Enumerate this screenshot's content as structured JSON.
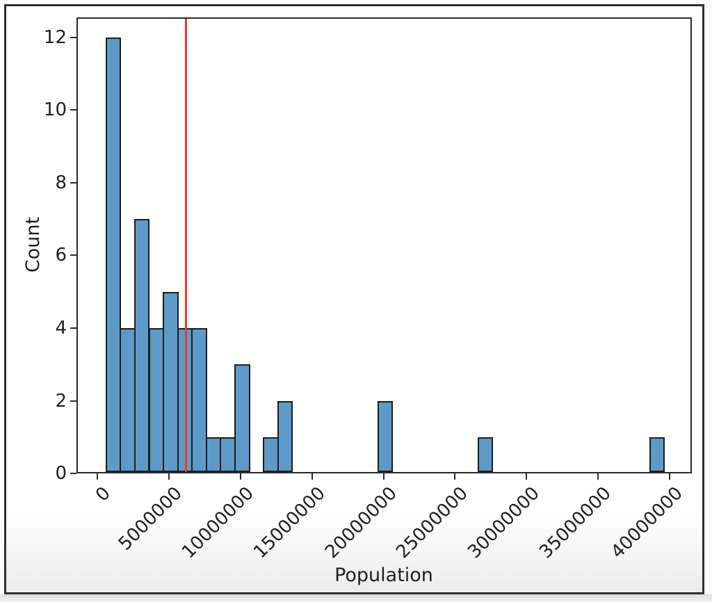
{
  "chart_data": {
    "type": "bar",
    "subtype": "histogram",
    "title": "",
    "xlabel": "Population",
    "ylabel": "Count",
    "xlim": [
      -1450000,
      41550000
    ],
    "ylim": [
      0,
      12.55
    ],
    "grid": false,
    "legend": "none",
    "x_ticks": [
      {
        "value": 0,
        "label": "0"
      },
      {
        "value": 5000000,
        "label": "5000000"
      },
      {
        "value": 10000000,
        "label": "10000000"
      },
      {
        "value": 15000000,
        "label": "15000000"
      },
      {
        "value": 20000000,
        "label": "20000000"
      },
      {
        "value": 25000000,
        "label": "25000000"
      },
      {
        "value": 30000000,
        "label": "30000000"
      },
      {
        "value": 35000000,
        "label": "35000000"
      },
      {
        "value": 40000000,
        "label": "40000000"
      }
    ],
    "y_ticks": [
      {
        "value": 0,
        "label": "0"
      },
      {
        "value": 2,
        "label": "2"
      },
      {
        "value": 4,
        "label": "4"
      },
      {
        "value": 6,
        "label": "6"
      },
      {
        "value": 8,
        "label": "8"
      },
      {
        "value": 10,
        "label": "10"
      },
      {
        "value": 12,
        "label": "12"
      }
    ],
    "bins": [
      {
        "x0": 580000,
        "x1": 1580000,
        "count": 12
      },
      {
        "x0": 1580000,
        "x1": 2580000,
        "count": 4
      },
      {
        "x0": 2580000,
        "x1": 3580000,
        "count": 7
      },
      {
        "x0": 3580000,
        "x1": 4580000,
        "count": 4
      },
      {
        "x0": 4580000,
        "x1": 5580000,
        "count": 5
      },
      {
        "x0": 5580000,
        "x1": 6580000,
        "count": 4
      },
      {
        "x0": 6580000,
        "x1": 7580000,
        "count": 4
      },
      {
        "x0": 7580000,
        "x1": 8580000,
        "count": 1
      },
      {
        "x0": 8580000,
        "x1": 9580000,
        "count": 1
      },
      {
        "x0": 9580000,
        "x1": 10580000,
        "count": 3
      },
      {
        "x0": 11580000,
        "x1": 12580000,
        "count": 1
      },
      {
        "x0": 12580000,
        "x1": 13580000,
        "count": 2
      },
      {
        "x0": 19580000,
        "x1": 20580000,
        "count": 2
      },
      {
        "x0": 26580000,
        "x1": 27580000,
        "count": 1
      },
      {
        "x0": 38580000,
        "x1": 39580000,
        "count": 1
      }
    ],
    "vline": {
      "x": 6200000,
      "color": "#ee382b"
    },
    "colors": {
      "bar_fill": "#5e9ac8",
      "bar_edge": "#1c1c1c",
      "axis": "#2a2a2a",
      "text": "#1f1f1f",
      "frame_border": "#2e2e2e"
    }
  }
}
